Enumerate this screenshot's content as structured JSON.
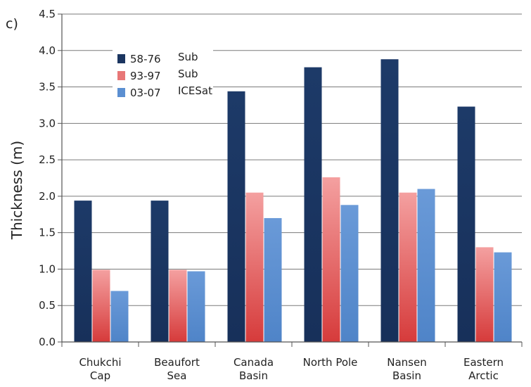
{
  "chart_data": {
    "type": "bar",
    "panel_label": "c)",
    "title": "",
    "xlabel": "",
    "ylabel": "Thickness (m)",
    "ylim": [
      0,
      4.5
    ],
    "yticks": [
      "0.0",
      "0.5",
      "1.0",
      "1.5",
      "2.0",
      "2.5",
      "3.0",
      "3.5",
      "4.0",
      "4.5"
    ],
    "categories": [
      [
        "Chukchi",
        "Cap"
      ],
      [
        "Beaufort",
        "Sea"
      ],
      [
        "Canada",
        "Basin"
      ],
      [
        "North Pole"
      ],
      [
        "Nansen",
        "Basin"
      ],
      [
        "Eastern",
        "Arctic"
      ]
    ],
    "series": [
      {
        "name": "58-76",
        "source": "Sub",
        "color": "#1b3560",
        "values": [
          1.94,
          1.94,
          3.44,
          3.77,
          3.88,
          3.23
        ]
      },
      {
        "name": "93-97",
        "source": "Sub",
        "color": "#e25a5a",
        "values": [
          0.99,
          0.99,
          2.05,
          2.26,
          2.05,
          1.3
        ]
      },
      {
        "name": "03-07",
        "source": "ICESat",
        "color": "#5b8fd1",
        "values": [
          0.7,
          0.97,
          1.7,
          1.88,
          2.1,
          1.23
        ]
      }
    ],
    "grid": {
      "horizontal": true
    },
    "legend_position": "top-left"
  }
}
